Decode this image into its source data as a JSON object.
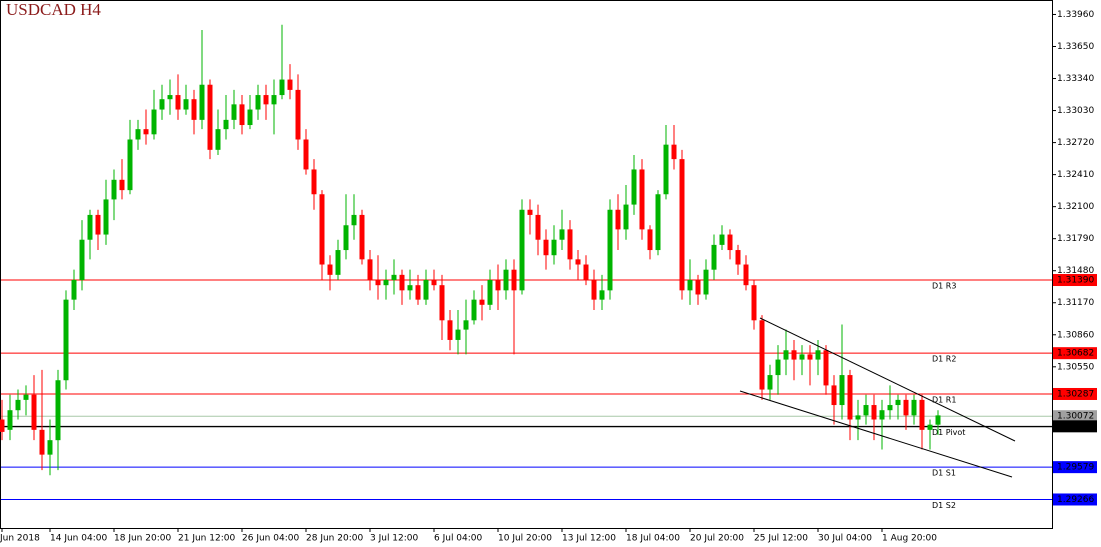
{
  "chart_data": {
    "type": "candlestick",
    "title": "USDCAD H4",
    "categories": [
      "Jun 2018",
      null,
      null,
      null,
      null,
      null,
      "14 Jun 04:00",
      null,
      null,
      null,
      null,
      null,
      null,
      null,
      "18 Jun 20:00",
      null,
      null,
      null,
      null,
      null,
      null,
      null,
      "21 Jun 12:00",
      null,
      null,
      null,
      null,
      null,
      null,
      null,
      "26 Jun 04:00",
      null,
      null,
      null,
      null,
      null,
      null,
      null,
      "28 Jun 20:00",
      null,
      null,
      null,
      null,
      null,
      null,
      null,
      "3 Jul 12:00",
      null,
      null,
      null,
      null,
      null,
      null,
      null,
      "6 Jul 04:00",
      null,
      null,
      null,
      null,
      null,
      null,
      null,
      "10 Jul 20:00",
      null,
      null,
      null,
      null,
      null,
      null,
      null,
      "13 Jul 12:00",
      null,
      null,
      null,
      null,
      null,
      null,
      null,
      "18 Jul 04:00",
      null,
      null,
      null,
      null,
      null,
      null,
      null,
      "20 Jul 20:00",
      null,
      null,
      null,
      null,
      null,
      null,
      null,
      "25 Jul 12:00",
      null,
      null,
      null,
      null,
      null,
      null,
      null,
      "30 Jul 04:00",
      null,
      null,
      null,
      null,
      null,
      null,
      null,
      "1 Aug 20:00",
      null,
      null,
      null,
      null,
      null,
      null,
      null
    ],
    "open": [
      1.3004,
      1.2994,
      1.3013,
      1.3023,
      1.3028,
      1.2994,
      1.297,
      1.2984,
      1.3042,
      1.312,
      1.3139,
      1.3178,
      1.3202,
      1.3183,
      1.3217,
      1.3236,
      1.3226,
      1.3275,
      1.3285,
      1.328,
      1.3304,
      1.3314,
      1.3318,
      1.3304,
      1.3314,
      1.3294,
      1.3328,
      1.3265,
      1.3285,
      1.3294,
      1.3309,
      1.3289,
      1.3304,
      1.3318,
      1.3309,
      1.3318,
      1.3333,
      1.3323,
      1.3275,
      1.3246,
      1.3222,
      1.3154,
      1.3144,
      1.3168,
      1.3192,
      1.3202,
      1.3159,
      1.3139,
      1.3134,
      1.3139,
      1.3144,
      1.3129,
      1.3134,
      1.312,
      1.3139,
      1.3134,
      1.31,
      1.3081,
      1.3091,
      1.31,
      1.312,
      1.3115,
      1.3139,
      1.3129,
      1.3149,
      1.3129,
      1.3207,
      1.3202,
      1.3178,
      1.3163,
      1.3178,
      1.3188,
      1.3159,
      1.3154,
      1.3139,
      1.312,
      1.3129,
      1.3207,
      1.3188,
      1.3212,
      1.3246,
      1.3188,
      1.3168,
      1.3222,
      1.327,
      1.3256,
      1.3129,
      1.3139,
      1.3125,
      1.3149,
      1.3173,
      1.3183,
      1.3168,
      1.3154,
      1.3134,
      1.31,
      1.3033,
      1.3047,
      1.3062,
      1.3071,
      1.3062,
      1.3067,
      1.3062,
      1.3071,
      1.3037,
      1.3018,
      1.3047,
      1.3004,
      1.3008,
      1.3018,
      1.3004,
      1.3013,
      1.3018,
      1.3023,
      1.3008,
      1.3023,
      1.2994,
      1.2999
    ],
    "high": [
      1.3023,
      1.3028,
      1.3033,
      1.3037,
      1.3047,
      1.3052,
      1.3004,
      1.3052,
      1.3129,
      1.3149,
      1.3197,
      1.3207,
      1.3207,
      1.3236,
      1.3246,
      1.3256,
      1.3294,
      1.3294,
      1.3304,
      1.3323,
      1.3328,
      1.3333,
      1.3338,
      1.3328,
      1.3323,
      1.3381,
      1.3333,
      1.3304,
      1.3318,
      1.3323,
      1.3318,
      1.3318,
      1.3328,
      1.3328,
      1.3333,
      1.3386,
      1.3348,
      1.3338,
      1.3285,
      1.3256,
      1.3226,
      1.3163,
      1.3178,
      1.3222,
      1.3222,
      1.3207,
      1.3168,
      1.3163,
      1.3149,
      1.3159,
      1.3149,
      1.3149,
      1.3144,
      1.3149,
      1.3149,
      1.3144,
      1.311,
      1.311,
      1.312,
      1.3129,
      1.3134,
      1.3149,
      1.3154,
      1.3159,
      1.3159,
      1.3217,
      1.3217,
      1.3212,
      1.3188,
      1.3192,
      1.3207,
      1.3197,
      1.3168,
      1.3163,
      1.3149,
      1.3144,
      1.3217,
      1.3222,
      1.3231,
      1.326,
      1.3256,
      1.3192,
      1.3226,
      1.3289,
      1.3289,
      1.3265,
      1.3159,
      1.3144,
      1.3159,
      1.3183,
      1.3192,
      1.3188,
      1.3173,
      1.3163,
      1.3139,
      1.3105,
      1.3057,
      1.3076,
      1.3091,
      1.3081,
      1.3076,
      1.3076,
      1.3081,
      1.3076,
      1.3047,
      1.3096,
      1.3052,
      1.3023,
      1.3028,
      1.3028,
      1.3023,
      1.3037,
      1.3028,
      1.3028,
      1.3028,
      1.3028,
      1.3004,
      1.3013
    ],
    "low": [
      1.2984,
      1.2984,
      1.3004,
      1.3008,
      1.2984,
      1.2955,
      1.295,
      1.2955,
      1.3033,
      1.311,
      1.3129,
      1.3159,
      1.3168,
      1.3173,
      1.3197,
      1.3217,
      1.3222,
      1.3265,
      1.327,
      1.3275,
      1.3294,
      1.3299,
      1.3294,
      1.3299,
      1.328,
      1.3285,
      1.3256,
      1.326,
      1.3275,
      1.3285,
      1.328,
      1.3285,
      1.3294,
      1.3294,
      1.328,
      1.3314,
      1.3314,
      1.3265,
      1.3241,
      1.3207,
      1.3139,
      1.3129,
      1.3139,
      1.3159,
      1.3178,
      1.3154,
      1.3129,
      1.312,
      1.312,
      1.3125,
      1.3115,
      1.312,
      1.3115,
      1.3115,
      1.3129,
      1.3081,
      1.3071,
      1.3067,
      1.3067,
      1.3096,
      1.31,
      1.311,
      1.311,
      1.312,
      1.3067,
      1.3125,
      1.3183,
      1.3163,
      1.3149,
      1.3154,
      1.3168,
      1.3149,
      1.3139,
      1.3134,
      1.311,
      1.311,
      1.312,
      1.3168,
      1.3178,
      1.3202,
      1.3178,
      1.3159,
      1.3163,
      1.3217,
      1.3246,
      1.312,
      1.3115,
      1.3115,
      1.312,
      1.3139,
      1.3168,
      1.3159,
      1.3144,
      1.3129,
      1.3091,
      1.3023,
      1.3023,
      1.3028,
      1.3047,
      1.3042,
      1.3047,
      1.3037,
      1.3047,
      1.3028,
      1.2999,
      1.3004,
      1.2984,
      1.2984,
      1.2999,
      1.2984,
      1.2975,
      1.3004,
      1.3004,
      1.2994,
      1.2999,
      1.2975,
      1.2975,
      1.2989
    ],
    "close": [
      1.2992,
      1.3013,
      1.3023,
      1.3028,
      1.2994,
      1.297,
      1.2984,
      1.3042,
      1.312,
      1.3139,
      1.3178,
      1.3202,
      1.3183,
      1.3217,
      1.3236,
      1.3226,
      1.3275,
      1.3285,
      1.328,
      1.3304,
      1.3314,
      1.3318,
      1.3304,
      1.3314,
      1.3294,
      1.3328,
      1.3265,
      1.3285,
      1.3294,
      1.3309,
      1.3289,
      1.3304,
      1.3318,
      1.3309,
      1.3318,
      1.3333,
      1.3323,
      1.3275,
      1.3246,
      1.3222,
      1.3154,
      1.3144,
      1.3168,
      1.3192,
      1.3202,
      1.3159,
      1.3139,
      1.3134,
      1.3139,
      1.3144,
      1.3129,
      1.3134,
      1.312,
      1.3139,
      1.3134,
      1.31,
      1.3081,
      1.3091,
      1.31,
      1.312,
      1.3115,
      1.3139,
      1.3129,
      1.3149,
      1.3129,
      1.3207,
      1.3202,
      1.3178,
      1.3163,
      1.3178,
      1.3188,
      1.3159,
      1.3154,
      1.3139,
      1.312,
      1.3129,
      1.3207,
      1.3188,
      1.3212,
      1.3246,
      1.3188,
      1.3168,
      1.3222,
      1.327,
      1.3256,
      1.3129,
      1.3139,
      1.3125,
      1.3149,
      1.3173,
      1.3183,
      1.3168,
      1.3154,
      1.3134,
      1.31,
      1.3033,
      1.3047,
      1.3062,
      1.3071,
      1.3062,
      1.3067,
      1.3062,
      1.3071,
      1.3037,
      1.3018,
      1.3047,
      1.3004,
      1.3008,
      1.3018,
      1.3004,
      1.3013,
      1.3018,
      1.3023,
      1.3008,
      1.3023,
      1.2994,
      1.2999,
      1.3008
    ],
    "up_color": "#00b400",
    "down_color": "#ff0000",
    "ylim": [
      1.2899,
      1.341
    ],
    "yticks": [
      {
        "value": 1.3396,
        "label": "1.33960"
      },
      {
        "value": 1.3365,
        "label": "1.33650"
      },
      {
        "value": 1.3334,
        "label": "1.33340"
      },
      {
        "value": 1.3303,
        "label": "1.33030"
      },
      {
        "value": 1.3272,
        "label": "1.32720"
      },
      {
        "value": 1.3241,
        "label": "1.32410"
      },
      {
        "value": 1.321,
        "label": "1.32100"
      },
      {
        "value": 1.3179,
        "label": "1.31790"
      },
      {
        "value": 1.3148,
        "label": "1.31480"
      },
      {
        "value": 1.3117,
        "label": "1.31170"
      },
      {
        "value": 1.3086,
        "label": "1.30860"
      },
      {
        "value": 1.3055,
        "label": "1.30550"
      }
    ],
    "levels": [
      {
        "name": "D1 R3",
        "price": {
          "value": 1.3139,
          "label": "1.31390"
        },
        "color": "#ff0000",
        "tag_color": "#ff0000"
      },
      {
        "name": "D1 R2",
        "price": {
          "value": 1.30682,
          "label": "1.30682"
        },
        "color": "#ff0000",
        "tag_color": "#ff0000"
      },
      {
        "name": "D1 R1",
        "price": {
          "value": 1.30287,
          "label": "1.30287"
        },
        "color": "#ff0000",
        "tag_color": "#ff0000"
      },
      {
        "price": {
          "value": 1.30072,
          "label": "1.30072"
        },
        "color": "#a8c8a8",
        "tag_color": "#a0a0a0"
      },
      {
        "name": "D1 Pivot",
        "price": 1.2997,
        "color": "#000000"
      },
      {
        "price": {
          "value": 1.29974,
          "label": "1.29974"
        },
        "color": "#000000",
        "tag_color": "#000000"
      },
      {
        "name": "D1 S1",
        "price": {
          "value": 1.29579,
          "label": "1.29579"
        },
        "color": "#0000ff",
        "tag_color": "#0000ff"
      },
      {
        "name": "D1 S2",
        "price": {
          "value": 1.29266,
          "label": "1.29266"
        },
        "color": "#0000ff",
        "tag_color": "#0000ff"
      }
    ]
  }
}
